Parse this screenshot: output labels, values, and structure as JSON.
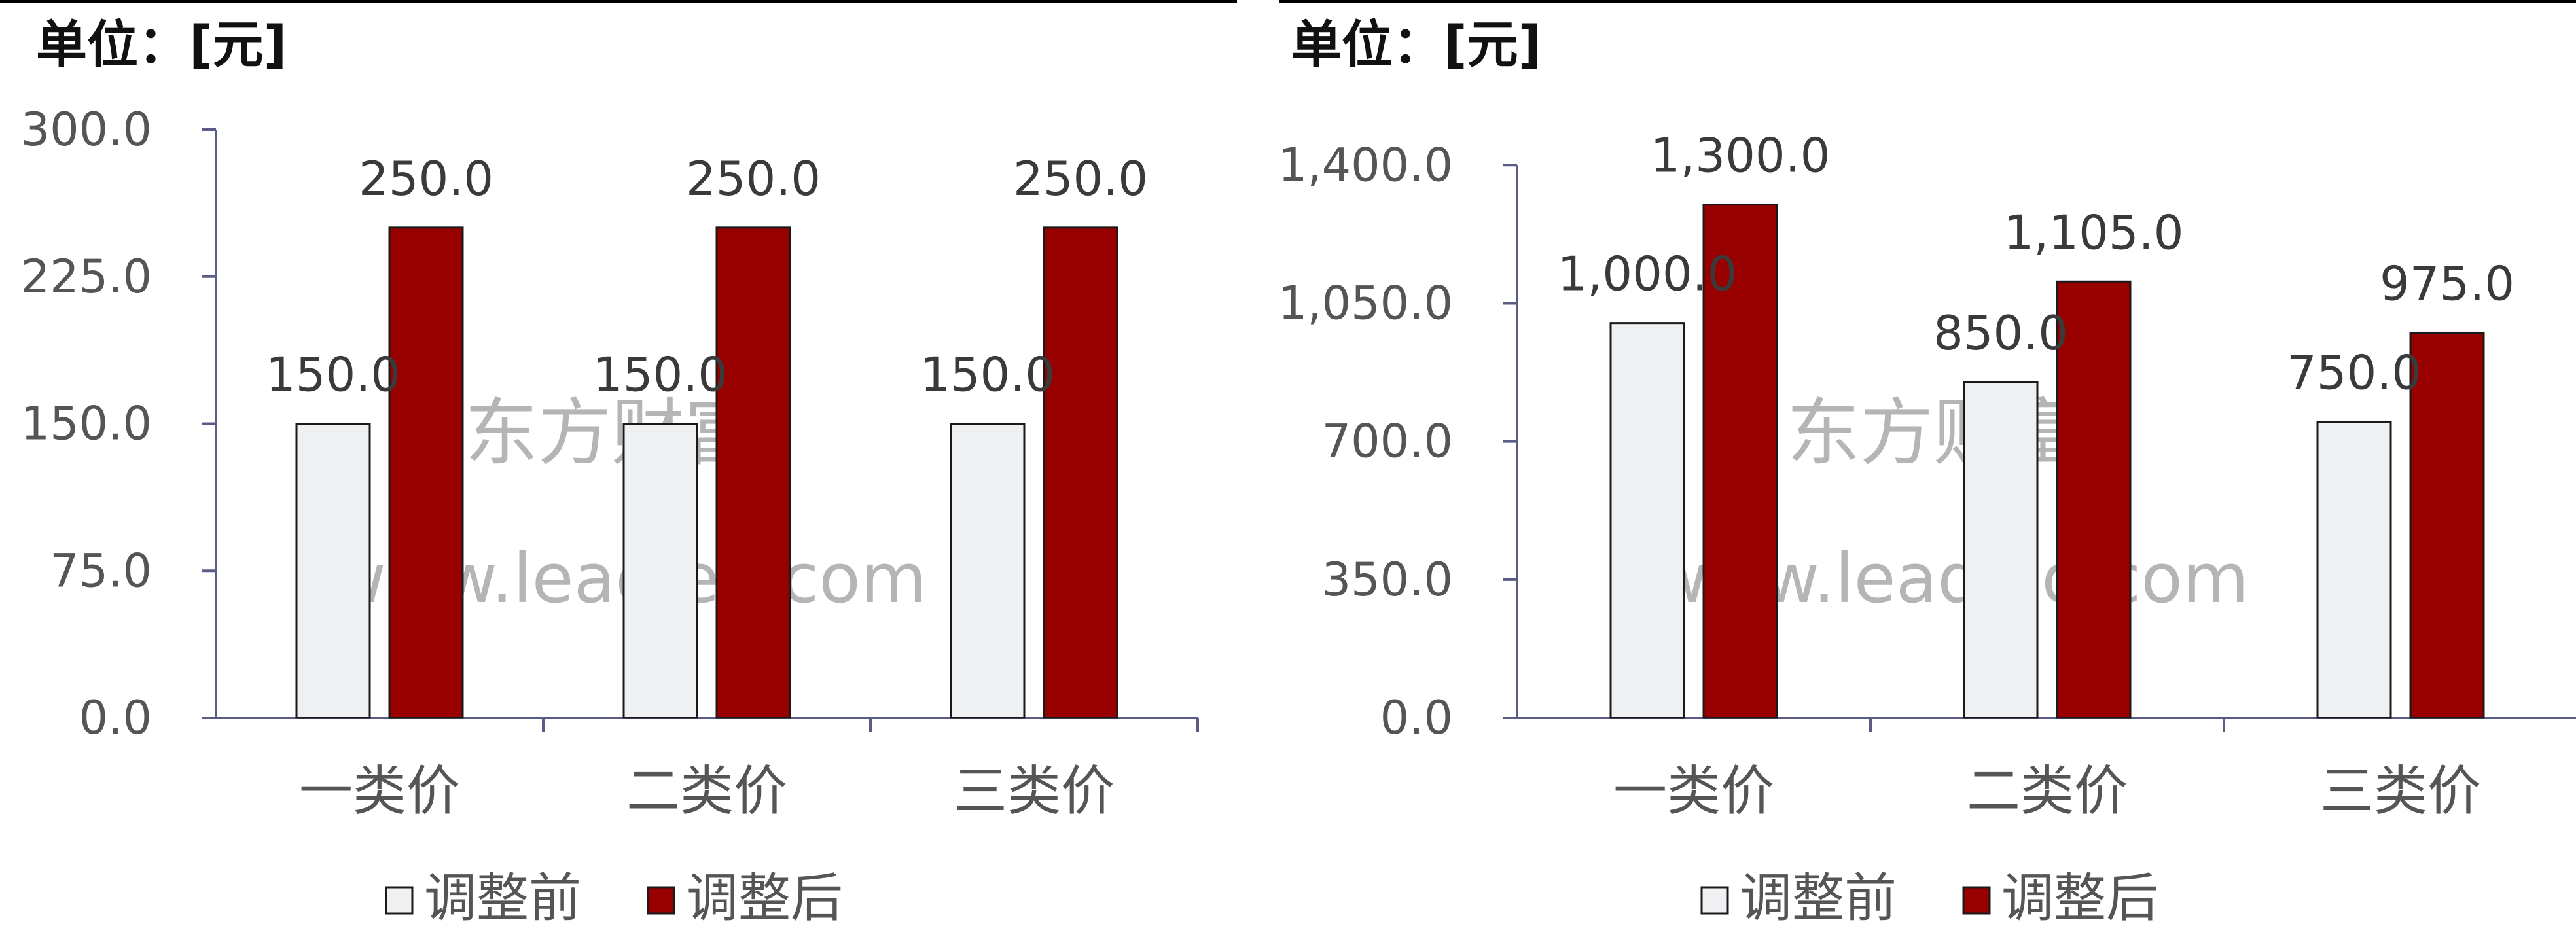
{
  "watermark": {
    "cn": "东方财富",
    "url": "www.leadleo.com"
  },
  "legend": {
    "before_label": "调整前",
    "after_label": "调整后"
  },
  "colors": {
    "before": "#eef0f2",
    "after": "#980000",
    "axis": "#5b5c86",
    "bar_stroke": "#1a1a1a"
  },
  "chart_data": [
    {
      "type": "bar",
      "unit_label": "单位：[元]",
      "categories": [
        "一类价",
        "二类价",
        "三类价"
      ],
      "series": [
        {
          "name": "调整前",
          "values": [
            150.0,
            150.0,
            150.0
          ]
        },
        {
          "name": "调整后",
          "values": [
            250.0,
            250.0,
            250.0
          ]
        }
      ],
      "ylim": [
        0,
        300
      ],
      "yticks": [
        0,
        75,
        150,
        225,
        300
      ],
      "ytick_labels": [
        "0.0",
        "75.0",
        "150.0",
        "225.0",
        "300.0"
      ],
      "data_labels": {
        "before": [
          "150.0",
          "150.0",
          "150.0"
        ],
        "after": [
          "250.0",
          "250.0",
          "250.0"
        ]
      },
      "grid": false,
      "legend_position": "bottom"
    },
    {
      "type": "bar",
      "unit_label": "单位：[元]",
      "categories": [
        "一类价",
        "二类价",
        "三类价"
      ],
      "series": [
        {
          "name": "调整前",
          "values": [
            1000.0,
            850.0,
            750.0
          ]
        },
        {
          "name": "调整后",
          "values": [
            1300.0,
            1105.0,
            975.0
          ]
        }
      ],
      "ylim": [
        0,
        1490
      ],
      "yticks": [
        0,
        350,
        700,
        1050,
        1400
      ],
      "ytick_labels": [
        "0.0",
        "350.0",
        "700.0",
        "1,050.0",
        "1,400.0"
      ],
      "data_labels": {
        "before": [
          "1,000.0",
          "850.0",
          "750.0"
        ],
        "after": [
          "1,300.0",
          "1,105.0",
          "975.0"
        ]
      },
      "grid": false,
      "legend_position": "bottom"
    }
  ]
}
